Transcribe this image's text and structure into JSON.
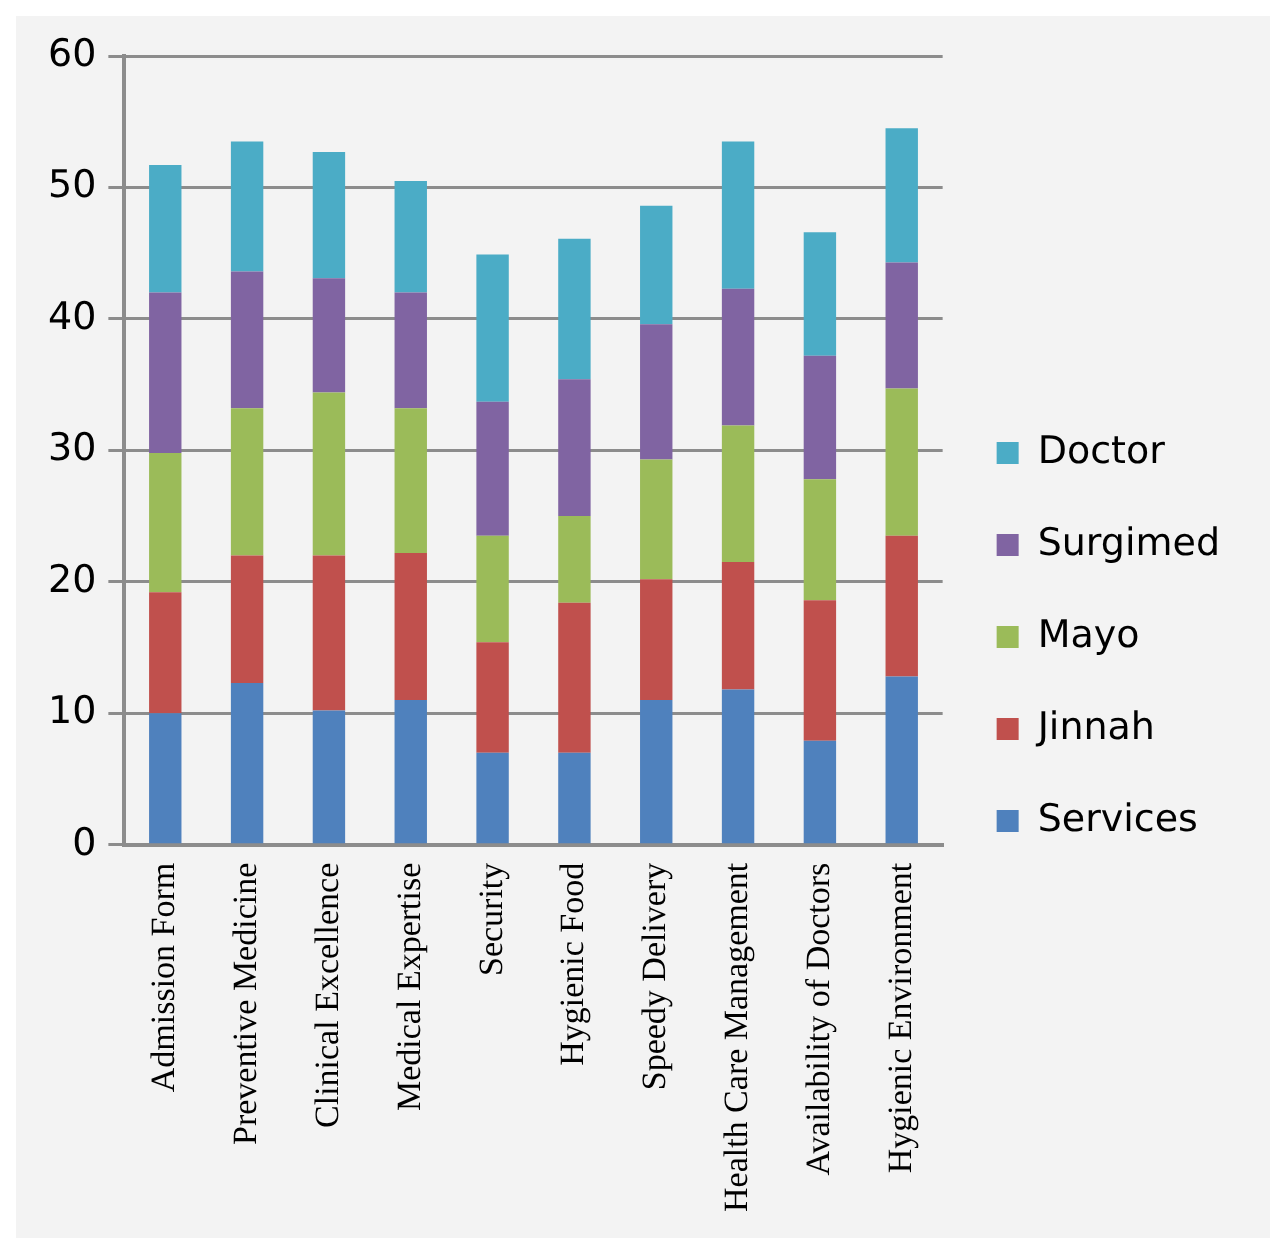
{
  "chart_data": {
    "type": "bar",
    "stacked": true,
    "categories": [
      "Admission Form",
      "Preventive Medicine",
      "Clinical Excellence",
      "Medical Expertise",
      "Security",
      "Hygienic Food",
      "Speedy Delivery",
      "Health Care Management",
      "Availability of Doctors",
      "Hygienic Environment"
    ],
    "series": [
      {
        "name": "Services",
        "color": "#4f81bd",
        "values": [
          10.0,
          12.3,
          10.2,
          11.0,
          7.0,
          7.0,
          11.0,
          11.8,
          7.9,
          12.8
        ]
      },
      {
        "name": "Jinnah",
        "color": "#c0504d",
        "values": [
          9.2,
          9.7,
          11.8,
          11.2,
          8.4,
          11.4,
          9.2,
          9.7,
          10.7,
          10.7
        ]
      },
      {
        "name": "Mayo",
        "color": "#9bbb59",
        "values": [
          10.6,
          11.2,
          12.4,
          11.0,
          8.1,
          6.6,
          9.1,
          10.4,
          9.2,
          11.2
        ]
      },
      {
        "name": "Surgimed",
        "color": "#8064a2",
        "values": [
          12.2,
          10.4,
          8.7,
          8.8,
          10.2,
          10.4,
          10.3,
          10.4,
          9.4,
          9.6
        ]
      },
      {
        "name": "Doctor",
        "color": "#4bacc6",
        "values": [
          9.7,
          9.9,
          9.6,
          8.5,
          11.2,
          10.7,
          9.0,
          11.2,
          9.4,
          10.2
        ]
      }
    ],
    "ylim": [
      0,
      60
    ],
    "yticks": [
      0,
      10,
      20,
      30,
      40,
      50,
      60
    ],
    "grid": "y",
    "legend": "right"
  }
}
